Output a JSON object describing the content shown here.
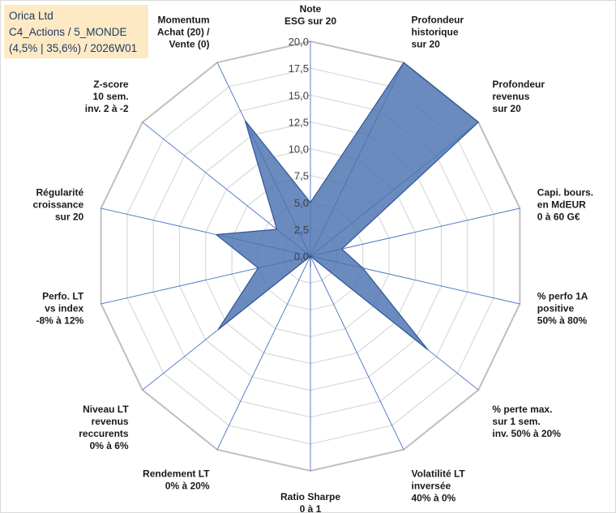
{
  "title_box": {
    "line1": "Orica Ltd",
    "line2": "C4_Actions / 5_MONDE",
    "line3": "(4,5% | 35,6%) / 2026W01"
  },
  "chart_data": {
    "type": "radar",
    "rmin": 0,
    "rmax": 20,
    "ticks": [
      "0,0",
      "2,5",
      "5,0",
      "7,5",
      "10,0",
      "12,5",
      "15,0",
      "17,5",
      "20,0"
    ],
    "axes": [
      [
        "Note",
        "ESG sur 20"
      ],
      [
        "Profondeur",
        "historique",
        "sur 20"
      ],
      [
        "Profondeur",
        "revenus",
        "sur 20"
      ],
      [
        "Capi. bours.",
        "en MdEUR",
        "0 à 60 G€"
      ],
      [
        "% perfo 1A",
        "positive",
        "50% à 80%"
      ],
      [
        "% perte max.",
        "sur 1 sem.",
        "inv. 50% à 20%"
      ],
      [
        "Volatilité LT",
        "inversée",
        "40% à 0%"
      ],
      [
        "Ratio Sharpe",
        "0 à 1"
      ],
      [
        "Rendement LT",
        "0% à 20%"
      ],
      [
        "Niveau LT",
        "revenus",
        "reccurents",
        "0% à 6%"
      ],
      [
        "Perfo. LT",
        "vs index",
        "-8% à 12%"
      ],
      [
        "Régularité",
        "croissance",
        "sur 20"
      ],
      [
        "Z-score",
        "10 sem.",
        "inv. 2 à -2"
      ],
      [
        "Momentum",
        "Achat (20) /",
        "Vente (0)"
      ]
    ],
    "series": [
      {
        "values": [
          5,
          20,
          20,
          3,
          5,
          14,
          0,
          1,
          0,
          11,
          5,
          9,
          4,
          14
        ]
      }
    ],
    "colors": {
      "fill": "#4a72b0",
      "stroke": "#2f5597",
      "grid": "#d9d9d9",
      "spoke": "#4472c4"
    },
    "grid": true,
    "legend": "none"
  }
}
